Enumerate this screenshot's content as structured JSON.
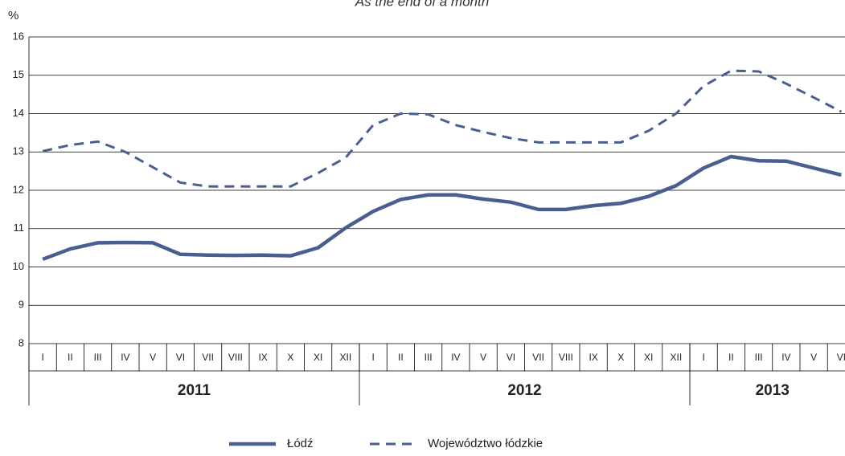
{
  "chart_data": {
    "type": "line",
    "title": "As the end of a month",
    "y_label": "%",
    "categories": [
      "I",
      "II",
      "III",
      "IV",
      "V",
      "VI",
      "VII",
      "VIII",
      "IX",
      "X",
      "XI",
      "XII",
      "I",
      "II",
      "III",
      "IV",
      "V",
      "VI",
      "VII",
      "VIII",
      "IX",
      "X",
      "XI",
      "XII",
      "I",
      "II",
      "III",
      "IV",
      "V",
      "VI"
    ],
    "year_groups": [
      {
        "name": "2011",
        "count": 12
      },
      {
        "name": "2012",
        "count": 12
      },
      {
        "name": "2013",
        "count": 6
      }
    ],
    "series": [
      {
        "name": "Łódź",
        "color": "#4a5f8f",
        "dashed": false,
        "values": [
          10.2,
          10.47,
          10.63,
          10.64,
          10.63,
          10.33,
          10.31,
          10.3,
          10.31,
          10.29,
          10.5,
          11.02,
          11.45,
          11.76,
          11.88,
          11.88,
          11.77,
          11.69,
          11.5,
          11.5,
          11.6,
          11.66,
          11.84,
          12.12,
          12.58,
          12.88,
          12.77,
          12.76,
          12.58,
          12.4
        ]
      },
      {
        "name": "Województwo łódzkie",
        "color": "#4a5f8f",
        "dashed": true,
        "values": [
          13.02,
          13.18,
          13.27,
          13.0,
          12.6,
          12.2,
          12.1,
          12.1,
          12.1,
          12.1,
          12.45,
          12.85,
          13.7,
          14.0,
          13.98,
          13.7,
          13.52,
          13.36,
          13.25,
          13.25,
          13.25,
          13.25,
          13.55,
          14.0,
          14.72,
          15.12,
          15.1,
          14.78,
          14.42,
          14.05
        ]
      }
    ],
    "ylim": [
      8,
      16
    ],
    "yticks": [
      8,
      9,
      10,
      11,
      12,
      13,
      14,
      15,
      16
    ],
    "grid": true
  }
}
